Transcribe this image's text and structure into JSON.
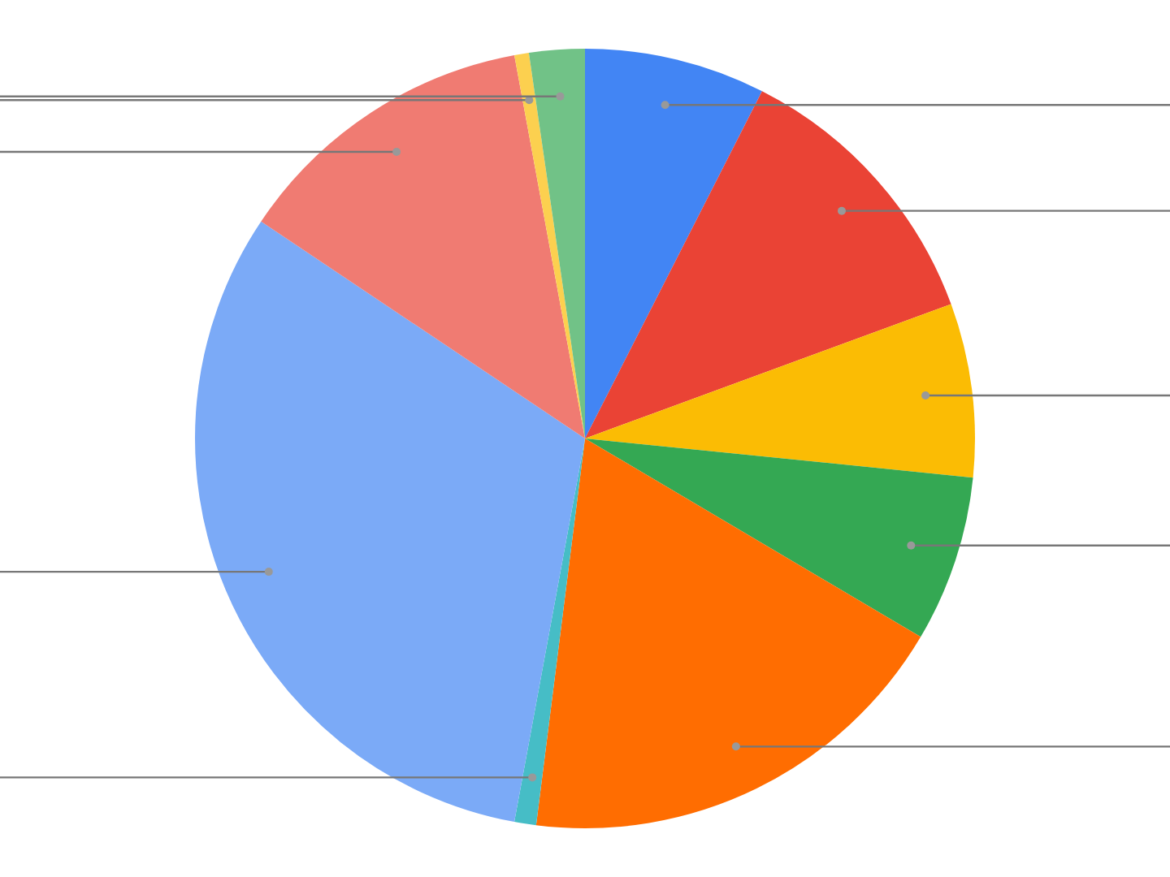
{
  "chart_data": {
    "type": "pie",
    "categories": [
      null,
      null,
      null,
      null,
      null,
      null,
      null,
      null,
      null,
      null
    ],
    "values": [
      7.5,
      11.9,
      7.2,
      6.9,
      18.5,
      0.9,
      31.5,
      12.7,
      0.6,
      2.3
    ],
    "colors": [
      "#4285f4",
      "#ea4335",
      "#fbbc04",
      "#34a853",
      "#ff6d01",
      "#46bdc6",
      "#7baaf7",
      "#f07b72",
      "#fcd04f",
      "#71c287"
    ]
  }
}
